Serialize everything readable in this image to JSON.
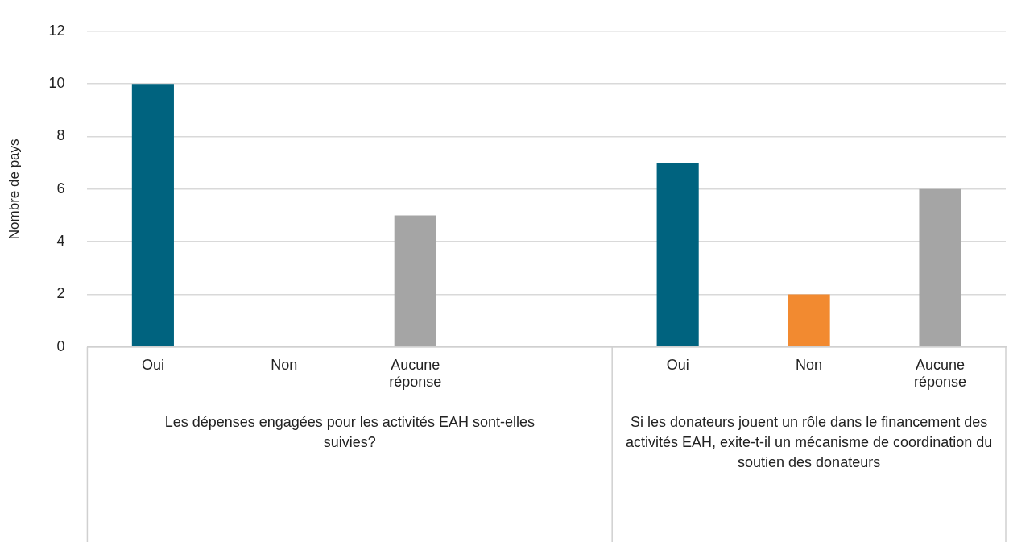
{
  "chart_data": {
    "type": "bar",
    "ylabel": "Nombre de pays",
    "categories": [
      "Oui",
      "Non",
      "Aucune réponse",
      null,
      "Oui",
      "Non",
      "Aucune réponse"
    ],
    "values": [
      10,
      0,
      5,
      null,
      7,
      2,
      6
    ],
    "colors": [
      "#00637f",
      "#f28a30",
      "#a5a5a5",
      null,
      "#00637f",
      "#f28a30",
      "#a5a5a5"
    ],
    "ylim": [
      0,
      12
    ],
    "yticks": [
      0,
      2,
      4,
      6,
      8,
      10,
      12
    ],
    "grid": "y",
    "legend": false,
    "annotations": [
      "Les dépenses engagées pour les activités EAH sont-elles suivies?",
      "Si les donateurs jouent un rôle dans le financement des activités EAH, exite-t-il un mécanisme de coordination du soutien des donateurs"
    ]
  }
}
